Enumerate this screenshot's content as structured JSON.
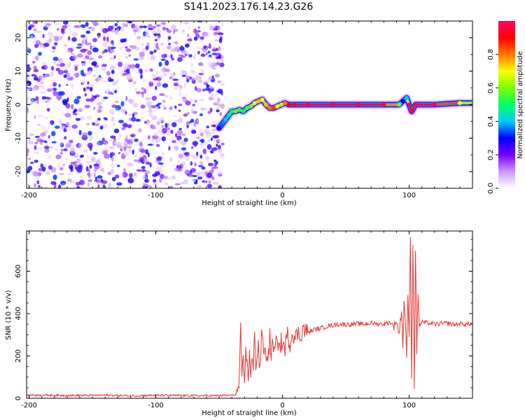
{
  "title": "S141.2023.176.14.23.G26",
  "chart_data": [
    {
      "type": "heatmap",
      "xlabel": "Height of straight line (km)",
      "ylabel": "Frequency (Hz)",
      "xlim": [
        -202,
        150
      ],
      "ylim": [
        -25,
        25
      ],
      "xticks": [
        -200,
        -100,
        0,
        100
      ],
      "yticks": [
        -20,
        -10,
        0,
        10,
        20
      ],
      "noise_region_x": [
        -202,
        -50
      ],
      "ridge": {
        "x": [
          -50,
          -48,
          -45,
          -42,
          -40,
          -37,
          -34,
          -31,
          -28,
          -25,
          -22,
          -19,
          -16,
          -13,
          -10,
          -7,
          -4,
          -1,
          2,
          5,
          10,
          20,
          40,
          60,
          80,
          92,
          95,
          98,
          100,
          102,
          105,
          120,
          140,
          150
        ],
        "y": [
          -7,
          -6,
          -4.5,
          -3,
          -2,
          -2,
          -1.5,
          -2,
          -1,
          -0.5,
          0.5,
          1,
          1.5,
          0,
          -1,
          -1,
          -0.5,
          0,
          0.5,
          0,
          0,
          0,
          0,
          0,
          0,
          0,
          1,
          2,
          0,
          -2,
          0,
          0,
          0.5,
          0.5
        ],
        "amplitude": [
          0.3,
          0.35,
          0.4,
          0.45,
          0.5,
          0.6,
          0.55,
          0.5,
          0.55,
          0.6,
          0.7,
          0.75,
          0.7,
          0.75,
          0.8,
          0.85,
          0.7,
          0.65,
          0.8,
          0.9,
          0.95,
          0.97,
          0.98,
          0.98,
          0.97,
          0.6,
          0.3,
          0.4,
          0.95,
          0.97,
          0.98,
          0.98,
          0.7,
          0.6
        ]
      },
      "colorbar": {
        "label": "Normalized spectral amplitude",
        "range": [
          0,
          1
        ],
        "ticks": [
          0.0,
          0.2,
          0.4,
          0.6,
          0.8
        ],
        "colors": [
          "#ffffff",
          "#cc99ff",
          "#7700ff",
          "#0000ff",
          "#00ccff",
          "#00ff66",
          "#77ff00",
          "#ffff00",
          "#ff7700",
          "#ff0000",
          "#ff0066"
        ]
      }
    },
    {
      "type": "line",
      "xlabel": "Height of straight line (km)",
      "ylabel": "SNR (10 * v/v)",
      "xlim": [
        -202,
        150
      ],
      "ylim": [
        0,
        790
      ],
      "xticks": [
        -200,
        -100,
        0,
        100
      ],
      "yticks": [
        0,
        200,
        400,
        600
      ],
      "color": "#ee3333",
      "series": [
        {
          "x": [
            -202,
            -180,
            -160,
            -140,
            -120,
            -100,
            -80,
            -60,
            -40,
            -36,
            -34,
            -33,
            -32,
            -31,
            -30,
            -29,
            -28,
            -27,
            -26,
            -25,
            -24,
            -23,
            -22,
            -21,
            -20,
            -19,
            -18,
            -17,
            -16,
            -15,
            -14,
            -13,
            -12,
            -11,
            -10,
            -9,
            -8,
            -7,
            -6,
            -5,
            -4,
            -3,
            -2,
            -1,
            0,
            2,
            4,
            6,
            8,
            10,
            12,
            14,
            16,
            20,
            25,
            30,
            35,
            40,
            45,
            50,
            55,
            60,
            65,
            70,
            75,
            80,
            85,
            88,
            90,
            92,
            94,
            95,
            96,
            97,
            98,
            99,
            100,
            101,
            102,
            103,
            104,
            105,
            106,
            107,
            108,
            110,
            115,
            120,
            125,
            130,
            135,
            140,
            145,
            150
          ],
          "y": [
            15,
            14,
            13,
            15,
            12,
            14,
            13,
            12,
            14,
            20,
            80,
            320,
            60,
            220,
            40,
            270,
            150,
            90,
            230,
            110,
            190,
            130,
            300,
            170,
            210,
            250,
            140,
            230,
            330,
            180,
            260,
            170,
            220,
            200,
            290,
            210,
            240,
            260,
            200,
            280,
            230,
            300,
            220,
            270,
            250,
            240,
            300,
            260,
            320,
            280,
            310,
            290,
            330,
            310,
            325,
            330,
            340,
            345,
            350,
            348,
            350,
            352,
            350,
            355,
            352,
            350,
            360,
            340,
            370,
            300,
            420,
            250,
            450,
            380,
            200,
            470,
            300,
            780,
            100,
            740,
            60,
            700,
            220,
            500,
            340,
            360,
            355,
            350,
            352,
            355,
            348,
            352,
            350,
            352
          ]
        }
      ]
    }
  ]
}
